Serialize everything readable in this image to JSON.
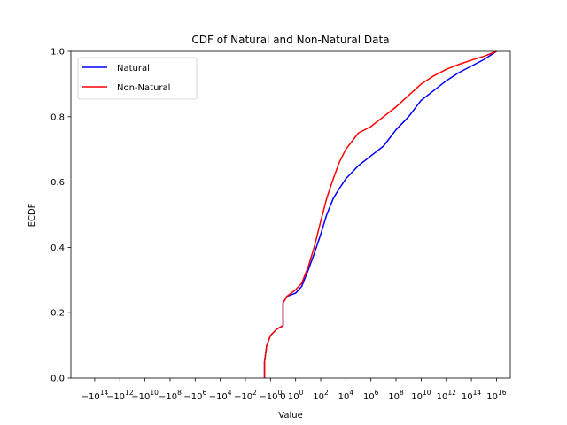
{
  "chart_data": {
    "type": "line",
    "title": "CDF of Natural and Non-Natural Data",
    "xlabel": "Value",
    "ylabel": "ECDF",
    "x_scale": "symlog",
    "ylim": [
      0,
      1.0
    ],
    "grid": false,
    "legend_position": "upper left",
    "x_ticks": [
      {
        "value": -100000000000000.0,
        "base": "−10",
        "exp": "14"
      },
      {
        "value": -1000000000000.0,
        "base": "−10",
        "exp": "12"
      },
      {
        "value": -10000000000.0,
        "base": "−10",
        "exp": "10"
      },
      {
        "value": -100000000.0,
        "base": "−10",
        "exp": "8"
      },
      {
        "value": -1000000.0,
        "base": "−10",
        "exp": "6"
      },
      {
        "value": -10000.0,
        "base": "−10",
        "exp": "4"
      },
      {
        "value": -100.0,
        "base": "−10",
        "exp": "2"
      },
      {
        "value": -1,
        "base": "−10",
        "exp": "0"
      },
      {
        "value": 0,
        "base": "0",
        "exp": ""
      },
      {
        "value": 1,
        "base": "10",
        "exp": "0"
      },
      {
        "value": 100.0,
        "base": "10",
        "exp": "2"
      },
      {
        "value": 10000.0,
        "base": "10",
        "exp": "4"
      },
      {
        "value": 1000000.0,
        "base": "10",
        "exp": "6"
      },
      {
        "value": 100000000.0,
        "base": "10",
        "exp": "8"
      },
      {
        "value": 10000000000.0,
        "base": "10",
        "exp": "10"
      },
      {
        "value": 1000000000000.0,
        "base": "10",
        "exp": "12"
      },
      {
        "value": 100000000000000.0,
        "base": "10",
        "exp": "14"
      },
      {
        "value": 1e+16,
        "base": "10",
        "exp": "16"
      }
    ],
    "y_ticks": [
      "0.0",
      "0.2",
      "0.4",
      "0.6",
      "0.8",
      "1.0"
    ],
    "series": [
      {
        "name": "Natural",
        "color": "#0000ff",
        "points": [
          [
            -3,
            0.0
          ],
          [
            -3,
            0.05
          ],
          [
            -2,
            0.1
          ],
          [
            -1,
            0.13
          ],
          [
            -0.5,
            0.15
          ],
          [
            0,
            0.16
          ],
          [
            0,
            0.17
          ],
          [
            0,
            0.23
          ],
          [
            0.3,
            0.25
          ],
          [
            1,
            0.26
          ],
          [
            3,
            0.28
          ],
          [
            10,
            0.33
          ],
          [
            30,
            0.38
          ],
          [
            100,
            0.44
          ],
          [
            300,
            0.5
          ],
          [
            1000,
            0.55
          ],
          [
            3000,
            0.58
          ],
          [
            10000.0,
            0.61
          ],
          [
            100000.0,
            0.65
          ],
          [
            1000000.0,
            0.68
          ],
          [
            10000000.0,
            0.71
          ],
          [
            100000000.0,
            0.76
          ],
          [
            1000000000.0,
            0.8
          ],
          [
            10000000000.0,
            0.85
          ],
          [
            100000000000.0,
            0.88
          ],
          [
            1000000000000.0,
            0.91
          ],
          [
            10000000000000.0,
            0.935
          ],
          [
            100000000000000.0,
            0.955
          ],
          [
            1000000000000000.0,
            0.975
          ],
          [
            1e+16,
            1.0
          ]
        ]
      },
      {
        "name": "Non-Natural",
        "color": "#ff0000",
        "points": [
          [
            -3,
            0.0
          ],
          [
            -3,
            0.05
          ],
          [
            -2,
            0.1
          ],
          [
            -1,
            0.13
          ],
          [
            -0.5,
            0.15
          ],
          [
            0,
            0.16
          ],
          [
            0,
            0.17
          ],
          [
            0,
            0.23
          ],
          [
            0.3,
            0.25
          ],
          [
            1,
            0.27
          ],
          [
            3,
            0.29
          ],
          [
            10,
            0.34
          ],
          [
            30,
            0.4
          ],
          [
            100,
            0.48
          ],
          [
            300,
            0.55
          ],
          [
            1000,
            0.61
          ],
          [
            3000,
            0.66
          ],
          [
            10000.0,
            0.7
          ],
          [
            100000.0,
            0.75
          ],
          [
            1000000.0,
            0.77
          ],
          [
            10000000.0,
            0.8
          ],
          [
            100000000.0,
            0.83
          ],
          [
            1000000000.0,
            0.865
          ],
          [
            10000000000.0,
            0.9
          ],
          [
            100000000000.0,
            0.925
          ],
          [
            1000000000000.0,
            0.945
          ],
          [
            10000000000000.0,
            0.96
          ],
          [
            100000000000000.0,
            0.973
          ],
          [
            1000000000000000.0,
            0.985
          ],
          [
            1e+16,
            1.0
          ]
        ]
      }
    ]
  }
}
